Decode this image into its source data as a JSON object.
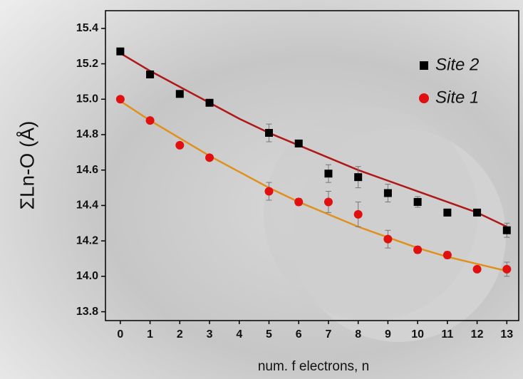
{
  "chart_data": {
    "type": "scatter",
    "xlabel": "num. f electrons, n",
    "ylabel": "ΣLn-O (Å)",
    "x": [
      0,
      1,
      2,
      3,
      5,
      6,
      7,
      8,
      9,
      10,
      11,
      12,
      13
    ],
    "series": [
      {
        "name": "Site 2",
        "color": "#000000",
        "marker": "square",
        "values": [
          15.27,
          15.14,
          15.03,
          14.98,
          14.81,
          14.75,
          14.58,
          14.56,
          14.47,
          14.42,
          14.36,
          14.36,
          14.26
        ],
        "errors": [
          0.01,
          0.01,
          0.01,
          0.01,
          0.05,
          0.02,
          0.05,
          0.06,
          0.05,
          0.03,
          0.02,
          0.01,
          0.04
        ]
      },
      {
        "name": "Site 1",
        "color": "#e01010",
        "marker": "circle",
        "values": [
          15.0,
          14.88,
          14.74,
          14.67,
          14.48,
          14.42,
          14.42,
          14.35,
          14.21,
          14.15,
          14.12,
          14.04,
          14.04
        ],
        "errors": [
          0.01,
          0.01,
          0.01,
          0.01,
          0.05,
          0.02,
          0.06,
          0.07,
          0.05,
          0.02,
          0.02,
          0.01,
          0.04
        ]
      }
    ],
    "fit_lines": [
      {
        "color": "#b01818",
        "x": [
          0,
          1,
          2,
          3,
          4,
          5,
          6,
          7,
          8,
          9,
          10,
          11,
          12,
          13
        ],
        "values": [
          15.26,
          15.16,
          15.07,
          14.98,
          14.89,
          14.81,
          14.74,
          14.67,
          14.6,
          14.54,
          14.48,
          14.42,
          14.36,
          14.28
        ]
      },
      {
        "color": "#e0901c",
        "x": [
          0,
          1,
          2,
          3,
          4,
          5,
          6,
          7,
          8,
          9,
          10,
          11,
          12,
          13
        ],
        "values": [
          14.99,
          14.88,
          14.78,
          14.68,
          14.59,
          14.5,
          14.42,
          14.35,
          14.28,
          14.22,
          14.16,
          14.11,
          14.07,
          14.03
        ]
      }
    ],
    "xlim": [
      -0.5,
      13.4
    ],
    "ylim": [
      13.75,
      15.5
    ],
    "xticks": [
      0,
      1,
      2,
      3,
      4,
      5,
      6,
      7,
      8,
      9,
      10,
      11,
      12,
      13
    ],
    "yticks": [
      13.8,
      {
        "value": 14,
        "label": "14.0"
      },
      14.2,
      14.4,
      14.6,
      14.8,
      {
        "value": 15,
        "label": "15.0"
      },
      15.2,
      15.4
    ],
    "legend": "upper-right"
  }
}
